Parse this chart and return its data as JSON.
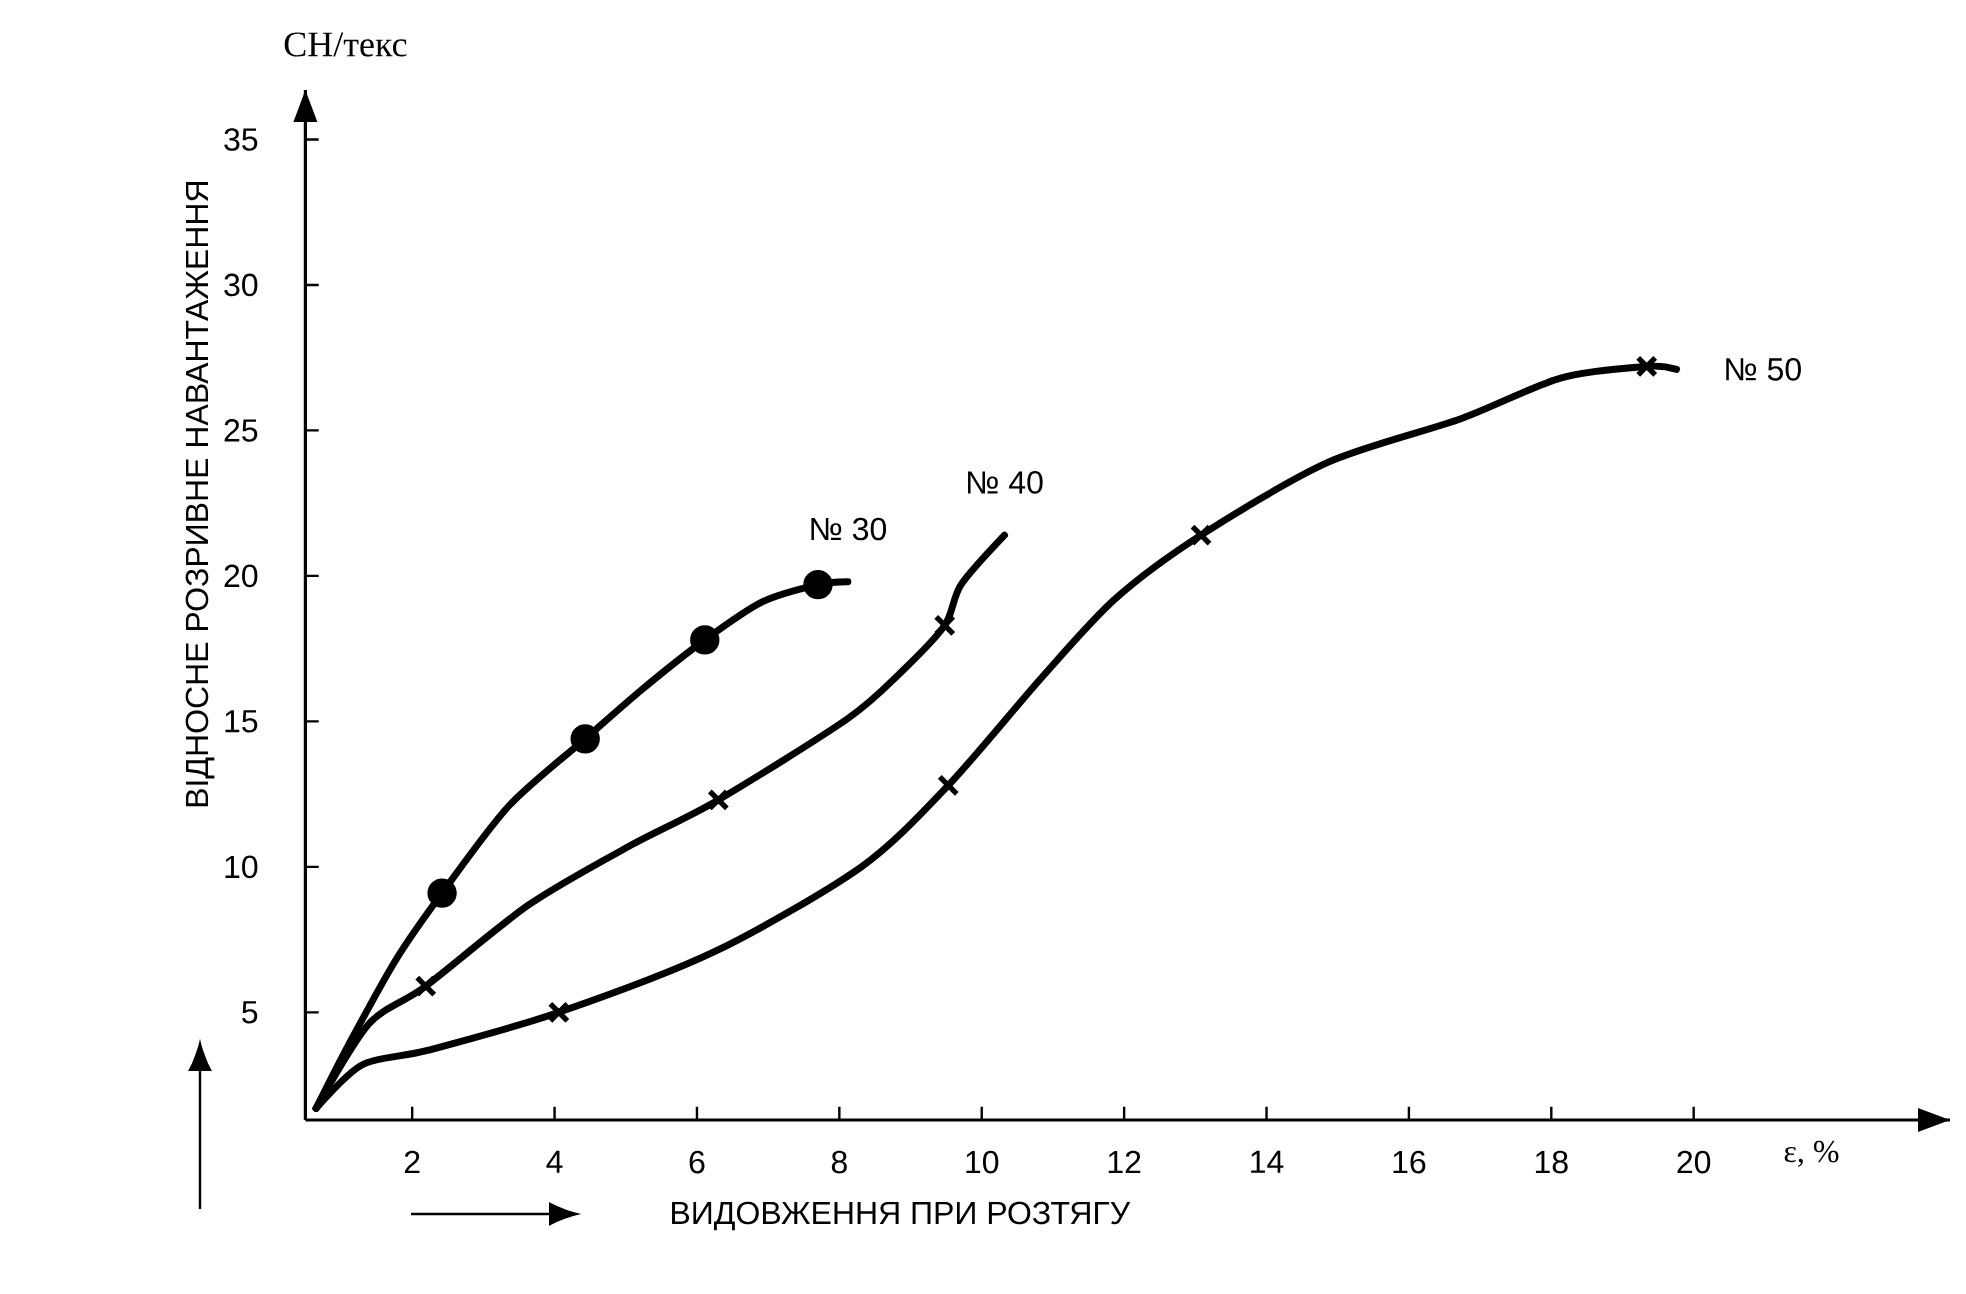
{
  "chart_data": {
    "type": "line",
    "xlabel": "ВИДОВЖЕННЯ ПРИ РОЗТЯГУ",
    "ylabel": "ВІДНОСНЕ РОЗРИВНЕ НАВАНТАЖЕННЯ",
    "annotations": [
      "СН/текс",
      "ε, %"
    ],
    "xlim": [
      0.5,
      23.6
    ],
    "ylim": [
      1.3,
      36.7
    ],
    "xticks": [
      2,
      4,
      6,
      8,
      10,
      12,
      14,
      16,
      18,
      20
    ],
    "yticks": [
      5,
      10,
      15,
      20,
      25,
      30,
      35
    ],
    "grid": false,
    "legend": false,
    "series": [
      {
        "name": "№ 30",
        "color": "#000000",
        "marker": "none",
        "x": [
          0.65,
          1.11,
          1.77,
          2.42,
          3.36,
          4.43,
          5.23,
          6.11,
          6.91,
          7.7,
          8.12
        ],
        "values": [
          1.7,
          3.9,
          6.8,
          9.1,
          12.1,
          14.4,
          16.1,
          17.8,
          19.1,
          19.7,
          19.8
        ]
      },
      {
        "color": "#000000",
        "type": "scatter",
        "marker": "circle",
        "x": [
          2.42,
          4.43,
          6.11,
          7.7
        ],
        "values": [
          9.1,
          14.4,
          17.8,
          19.7
        ]
      },
      {
        "name": "№ 40",
        "color": "#000000",
        "marker": "none",
        "x": [
          0.65,
          1.39,
          2.19,
          3.64,
          5.04,
          6.3,
          8.12,
          8.87,
          9.48,
          9.71,
          10.32
        ],
        "values": [
          1.7,
          4.6,
          5.9,
          8.7,
          10.7,
          12.3,
          15.1,
          16.7,
          18.3,
          19.7,
          21.4
        ]
      },
      {
        "color": "#000000",
        "type": "scatter",
        "marker": "cross",
        "x": [
          2.19,
          6.3,
          9.48
        ],
        "values": [
          5.9,
          12.3,
          18.3
        ]
      },
      {
        "name": "№ 50",
        "color": "#000000",
        "marker": "none",
        "x": [
          0.65,
          1.3,
          2.23,
          4.06,
          6.26,
          8.31,
          9.53,
          10.84,
          11.87,
          13.08,
          14.86,
          16.73,
          18.13,
          19.34,
          19.76
        ],
        "values": [
          1.7,
          3.2,
          3.7,
          5.0,
          7.1,
          10.0,
          12.8,
          16.5,
          19.2,
          21.4,
          23.9,
          25.4,
          26.8,
          27.2,
          27.1
        ]
      },
      {
        "color": "#000000",
        "type": "scatter",
        "marker": "cross",
        "x": [
          4.06,
          9.53,
          13.08,
          19.34
        ],
        "values": [
          5.0,
          12.8,
          21.4,
          27.2
        ]
      }
    ]
  }
}
